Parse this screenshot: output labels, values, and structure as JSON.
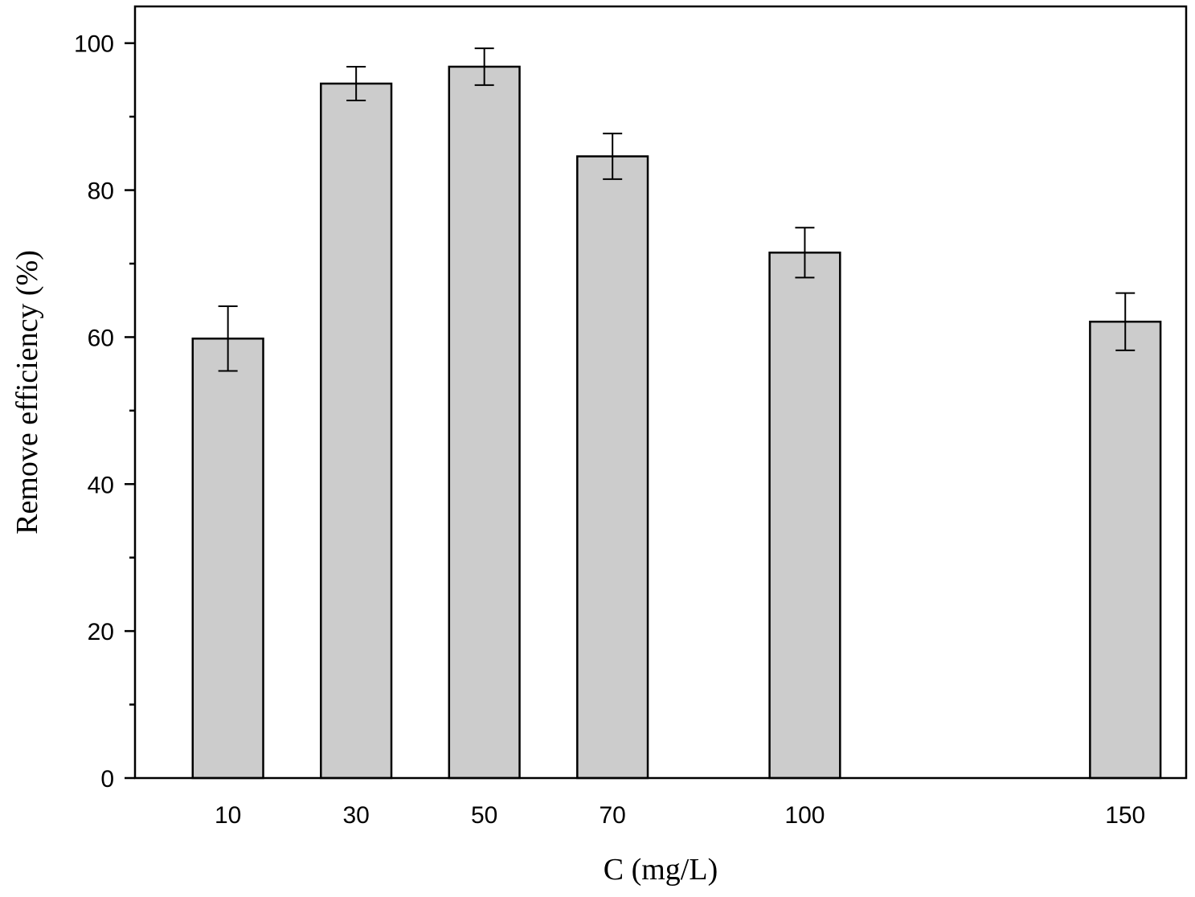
{
  "chart_data": {
    "type": "bar",
    "title": "",
    "xlabel": "C (mg/L)",
    "ylabel": "Remove efficiency (%)",
    "x": [
      10,
      30,
      50,
      70,
      100,
      150
    ],
    "categories": [
      "10",
      "30",
      "50",
      "70",
      "100",
      "150"
    ],
    "values": [
      59.8,
      94.5,
      96.8,
      84.6,
      71.5,
      62.1
    ],
    "errors": [
      4.4,
      2.3,
      2.5,
      3.1,
      3.4,
      3.9
    ],
    "xlim": [
      -4.5,
      159.5
    ],
    "ylim": [
      0,
      105
    ],
    "yticks": [
      0,
      20,
      40,
      60,
      80,
      100
    ],
    "yticks_minor": [
      10,
      30,
      50,
      70,
      90
    ],
    "bar_width_x": 11,
    "grid": false,
    "colors": {
      "bar_fill": "#cccccc",
      "bar_edge": "#000000"
    }
  }
}
